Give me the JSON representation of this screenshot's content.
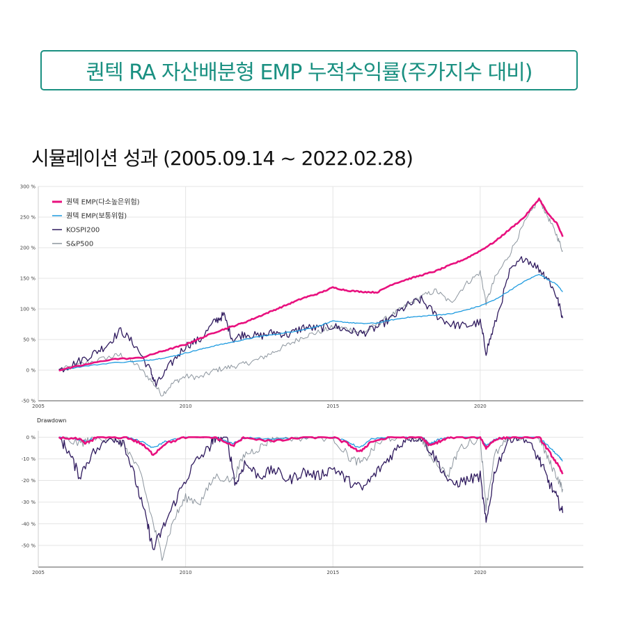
{
  "header": {
    "title": "퀀텍 RA 자산배분형 EMP 누적수익률(주가지수 대비)",
    "subtitle": "시뮬레이션 성과 (2005.09.14 ~ 2022.02.28)"
  },
  "colors": {
    "title_accent": "#1a9081",
    "series": [
      "#e8107e",
      "#1e9be0",
      "#2f1a5e",
      "#8c959e"
    ]
  },
  "chart_data": [
    {
      "type": "line",
      "y_unit": "%",
      "xlim": [
        2005.0,
        2023.5
      ],
      "ylim": [
        -50,
        300
      ],
      "x_ticks": [
        2005,
        2010,
        2015,
        2020
      ],
      "x_tick_labels": [
        "2005",
        "2010",
        "2015",
        "2020"
      ],
      "y_ticks": [
        -50,
        0,
        50,
        100,
        150,
        200,
        250,
        300
      ],
      "y_tick_labels": [
        "-50 %",
        "0 %",
        "50 %",
        "100 %",
        "150 %",
        "200 %",
        "250 %",
        "300 %"
      ],
      "grid": true,
      "legend_position": "top-left",
      "series": [
        {
          "name": "퀀텍 EMP(다소높은위험)",
          "x": [
            2005.7,
            2006.5,
            2007.5,
            2008.5,
            2009.0,
            2009.5,
            2010.0,
            2010.5,
            2011.0,
            2011.5,
            2012.0,
            2012.5,
            2013.0,
            2013.5,
            2014.0,
            2014.5,
            2015.0,
            2015.5,
            2016.0,
            2016.5,
            2017.0,
            2017.5,
            2018.0,
            2018.5,
            2019.0,
            2019.5,
            2020.0,
            2020.5,
            2021.0,
            2021.5,
            2022.0,
            2022.3,
            2022.6,
            2022.8
          ],
          "y": [
            0,
            8,
            18,
            20,
            28,
            35,
            42,
            52,
            62,
            70,
            78,
            88,
            98,
            108,
            118,
            125,
            135,
            130,
            128,
            127,
            140,
            148,
            155,
            162,
            172,
            182,
            195,
            210,
            230,
            250,
            280,
            255,
            240,
            218
          ]
        },
        {
          "name": "퀀텍 EMP(보통위험)",
          "x": [
            2005.7,
            2006.5,
            2007.5,
            2008.5,
            2009.0,
            2009.5,
            2010.0,
            2010.5,
            2011.0,
            2011.5,
            2012.0,
            2012.5,
            2013.0,
            2013.5,
            2014.0,
            2014.5,
            2015.0,
            2015.5,
            2016.0,
            2016.5,
            2017.0,
            2017.5,
            2018.0,
            2018.5,
            2019.0,
            2019.5,
            2020.0,
            2020.5,
            2021.0,
            2021.5,
            2022.0,
            2022.3,
            2022.6,
            2022.8
          ],
          "y": [
            0,
            6,
            12,
            15,
            18,
            22,
            28,
            34,
            40,
            45,
            50,
            55,
            58,
            62,
            66,
            72,
            80,
            78,
            76,
            77,
            82,
            86,
            88,
            90,
            92,
            98,
            105,
            115,
            130,
            145,
            157,
            148,
            140,
            128
          ]
        },
        {
          "name": "KOSPI200",
          "x": [
            2005.7,
            2006.2,
            2006.8,
            2007.3,
            2007.8,
            2008.3,
            2008.8,
            2009.0,
            2009.5,
            2010.0,
            2010.5,
            2011.0,
            2011.3,
            2011.6,
            2012.0,
            2012.5,
            2013.0,
            2013.5,
            2014.0,
            2014.5,
            2015.0,
            2015.5,
            2016.0,
            2016.5,
            2017.0,
            2017.5,
            2018.0,
            2018.5,
            2019.0,
            2019.5,
            2020.0,
            2020.2,
            2020.5,
            2021.0,
            2021.5,
            2022.0,
            2022.3,
            2022.6,
            2022.8
          ],
          "y": [
            0,
            10,
            25,
            40,
            65,
            40,
            0,
            -25,
            10,
            40,
            50,
            80,
            90,
            50,
            60,
            55,
            62,
            58,
            70,
            68,
            72,
            65,
            60,
            70,
            85,
            105,
            115,
            90,
            75,
            72,
            78,
            30,
            75,
            160,
            185,
            165,
            150,
            120,
            85
          ]
        },
        {
          "name": "S&P500",
          "x": [
            2005.7,
            2006.5,
            2007.3,
            2007.8,
            2008.3,
            2008.8,
            2009.2,
            2009.6,
            2010.0,
            2010.5,
            2011.0,
            2011.5,
            2012.0,
            2012.5,
            2013.0,
            2013.5,
            2014.0,
            2014.5,
            2015.0,
            2015.5,
            2016.0,
            2016.5,
            2017.0,
            2017.5,
            2018.0,
            2018.5,
            2019.0,
            2019.5,
            2020.0,
            2020.2,
            2020.5,
            2021.0,
            2021.5,
            2022.0,
            2022.3,
            2022.6,
            2022.8
          ],
          "y": [
            0,
            10,
            20,
            25,
            10,
            -15,
            -40,
            -20,
            -10,
            -12,
            0,
            5,
            10,
            18,
            30,
            42,
            55,
            62,
            70,
            68,
            60,
            75,
            90,
            105,
            120,
            130,
            110,
            140,
            160,
            110,
            150,
            190,
            240,
            280,
            250,
            220,
            195
          ]
        }
      ]
    },
    {
      "type": "line",
      "title": "Drawdown",
      "y_unit": "%",
      "xlim": [
        2005.0,
        2023.5
      ],
      "ylim": [
        -60,
        3
      ],
      "x_ticks": [
        2005,
        2010,
        2015,
        2020
      ],
      "x_tick_labels": [
        "2005",
        "2010",
        "2015",
        "2020"
      ],
      "y_ticks": [
        0,
        -10,
        -20,
        -30,
        -40,
        -50
      ],
      "y_tick_labels": [
        "0 %",
        "-10 %",
        "-20 %",
        "-30 %",
        "-40 %",
        "-50 %"
      ],
      "grid": true,
      "series": [
        {
          "name": "퀀텍 EMP(다소높은위험)",
          "x": [
            2005.7,
            2006.4,
            2006.6,
            2007.0,
            2008.0,
            2008.5,
            2008.9,
            2009.3,
            2010.0,
            2011.0,
            2011.6,
            2012.0,
            2013.0,
            2014.0,
            2015.0,
            2015.5,
            2015.9,
            2016.3,
            2017.0,
            2018.0,
            2018.3,
            2018.6,
            2019.0,
            2020.0,
            2020.2,
            2020.5,
            2021.0,
            2022.0,
            2022.3,
            2022.6,
            2022.8
          ],
          "y": [
            0,
            -1,
            -3,
            0,
            0,
            -3,
            -8,
            -3,
            0,
            0,
            -4,
            0,
            -2,
            0,
            0,
            -3,
            -7,
            -2,
            0,
            0,
            -4,
            -2,
            0,
            0,
            -5,
            -1,
            0,
            0,
            -6,
            -12,
            -17
          ]
        },
        {
          "name": "퀀텍 EMP(보통위험)",
          "x": [
            2005.7,
            2006.4,
            2006.6,
            2007.0,
            2008.0,
            2008.5,
            2008.9,
            2009.3,
            2010.0,
            2011.0,
            2011.6,
            2012.0,
            2013.0,
            2014.0,
            2015.0,
            2015.5,
            2015.9,
            2016.3,
            2017.0,
            2018.0,
            2018.3,
            2018.6,
            2019.0,
            2020.0,
            2020.2,
            2020.5,
            2021.0,
            2022.0,
            2022.3,
            2022.6,
            2022.8
          ],
          "y": [
            0,
            -1,
            -2,
            0,
            0,
            -2,
            -5,
            -2,
            0,
            0,
            -3,
            0,
            -1,
            0,
            0,
            -2,
            -5,
            -1,
            0,
            0,
            -3,
            -1,
            0,
            0,
            -4,
            -1,
            0,
            0,
            -4,
            -8,
            -11
          ]
        },
        {
          "name": "KOSPI200",
          "x": [
            2005.7,
            2006.0,
            2006.4,
            2006.8,
            2007.5,
            2007.9,
            2008.3,
            2008.7,
            2008.9,
            2009.3,
            2009.8,
            2010.3,
            2010.8,
            2011.0,
            2011.4,
            2011.7,
            2012.0,
            2012.5,
            2013.0,
            2013.5,
            2014.0,
            2014.5,
            2015.0,
            2015.5,
            2016.0,
            2016.5,
            2017.0,
            2017.5,
            2018.0,
            2018.5,
            2019.0,
            2019.5,
            2020.0,
            2020.2,
            2020.5,
            2021.0,
            2021.5,
            2022.0,
            2022.3,
            2022.6,
            2022.8
          ],
          "y": [
            0,
            -6,
            -18,
            -8,
            0,
            -2,
            -20,
            -40,
            -52,
            -40,
            -25,
            -12,
            -5,
            0,
            0,
            -22,
            -12,
            -18,
            -15,
            -20,
            -16,
            -18,
            -14,
            -20,
            -24,
            -16,
            -8,
            0,
            0,
            -10,
            -22,
            -20,
            -18,
            -40,
            -15,
            0,
            0,
            -10,
            -20,
            -28,
            -35
          ]
        },
        {
          "name": "S&P500",
          "x": [
            2005.7,
            2006.4,
            2006.8,
            2007.5,
            2008.0,
            2008.5,
            2008.9,
            2009.2,
            2009.6,
            2010.0,
            2010.5,
            2011.0,
            2011.6,
            2012.0,
            2012.5,
            2013.0,
            2014.0,
            2015.0,
            2015.6,
            2016.0,
            2016.5,
            2017.0,
            2018.0,
            2018.3,
            2018.9,
            2019.3,
            2020.0,
            2020.2,
            2020.5,
            2021.0,
            2022.0,
            2022.3,
            2022.6,
            2022.8
          ],
          "y": [
            0,
            -3,
            -1,
            0,
            -5,
            -18,
            -40,
            -55,
            -38,
            -28,
            -30,
            -18,
            -20,
            -8,
            -5,
            0,
            0,
            0,
            -10,
            -12,
            -3,
            0,
            0,
            -8,
            -18,
            -5,
            0,
            -32,
            -8,
            0,
            0,
            -10,
            -18,
            -24
          ]
        }
      ]
    }
  ]
}
